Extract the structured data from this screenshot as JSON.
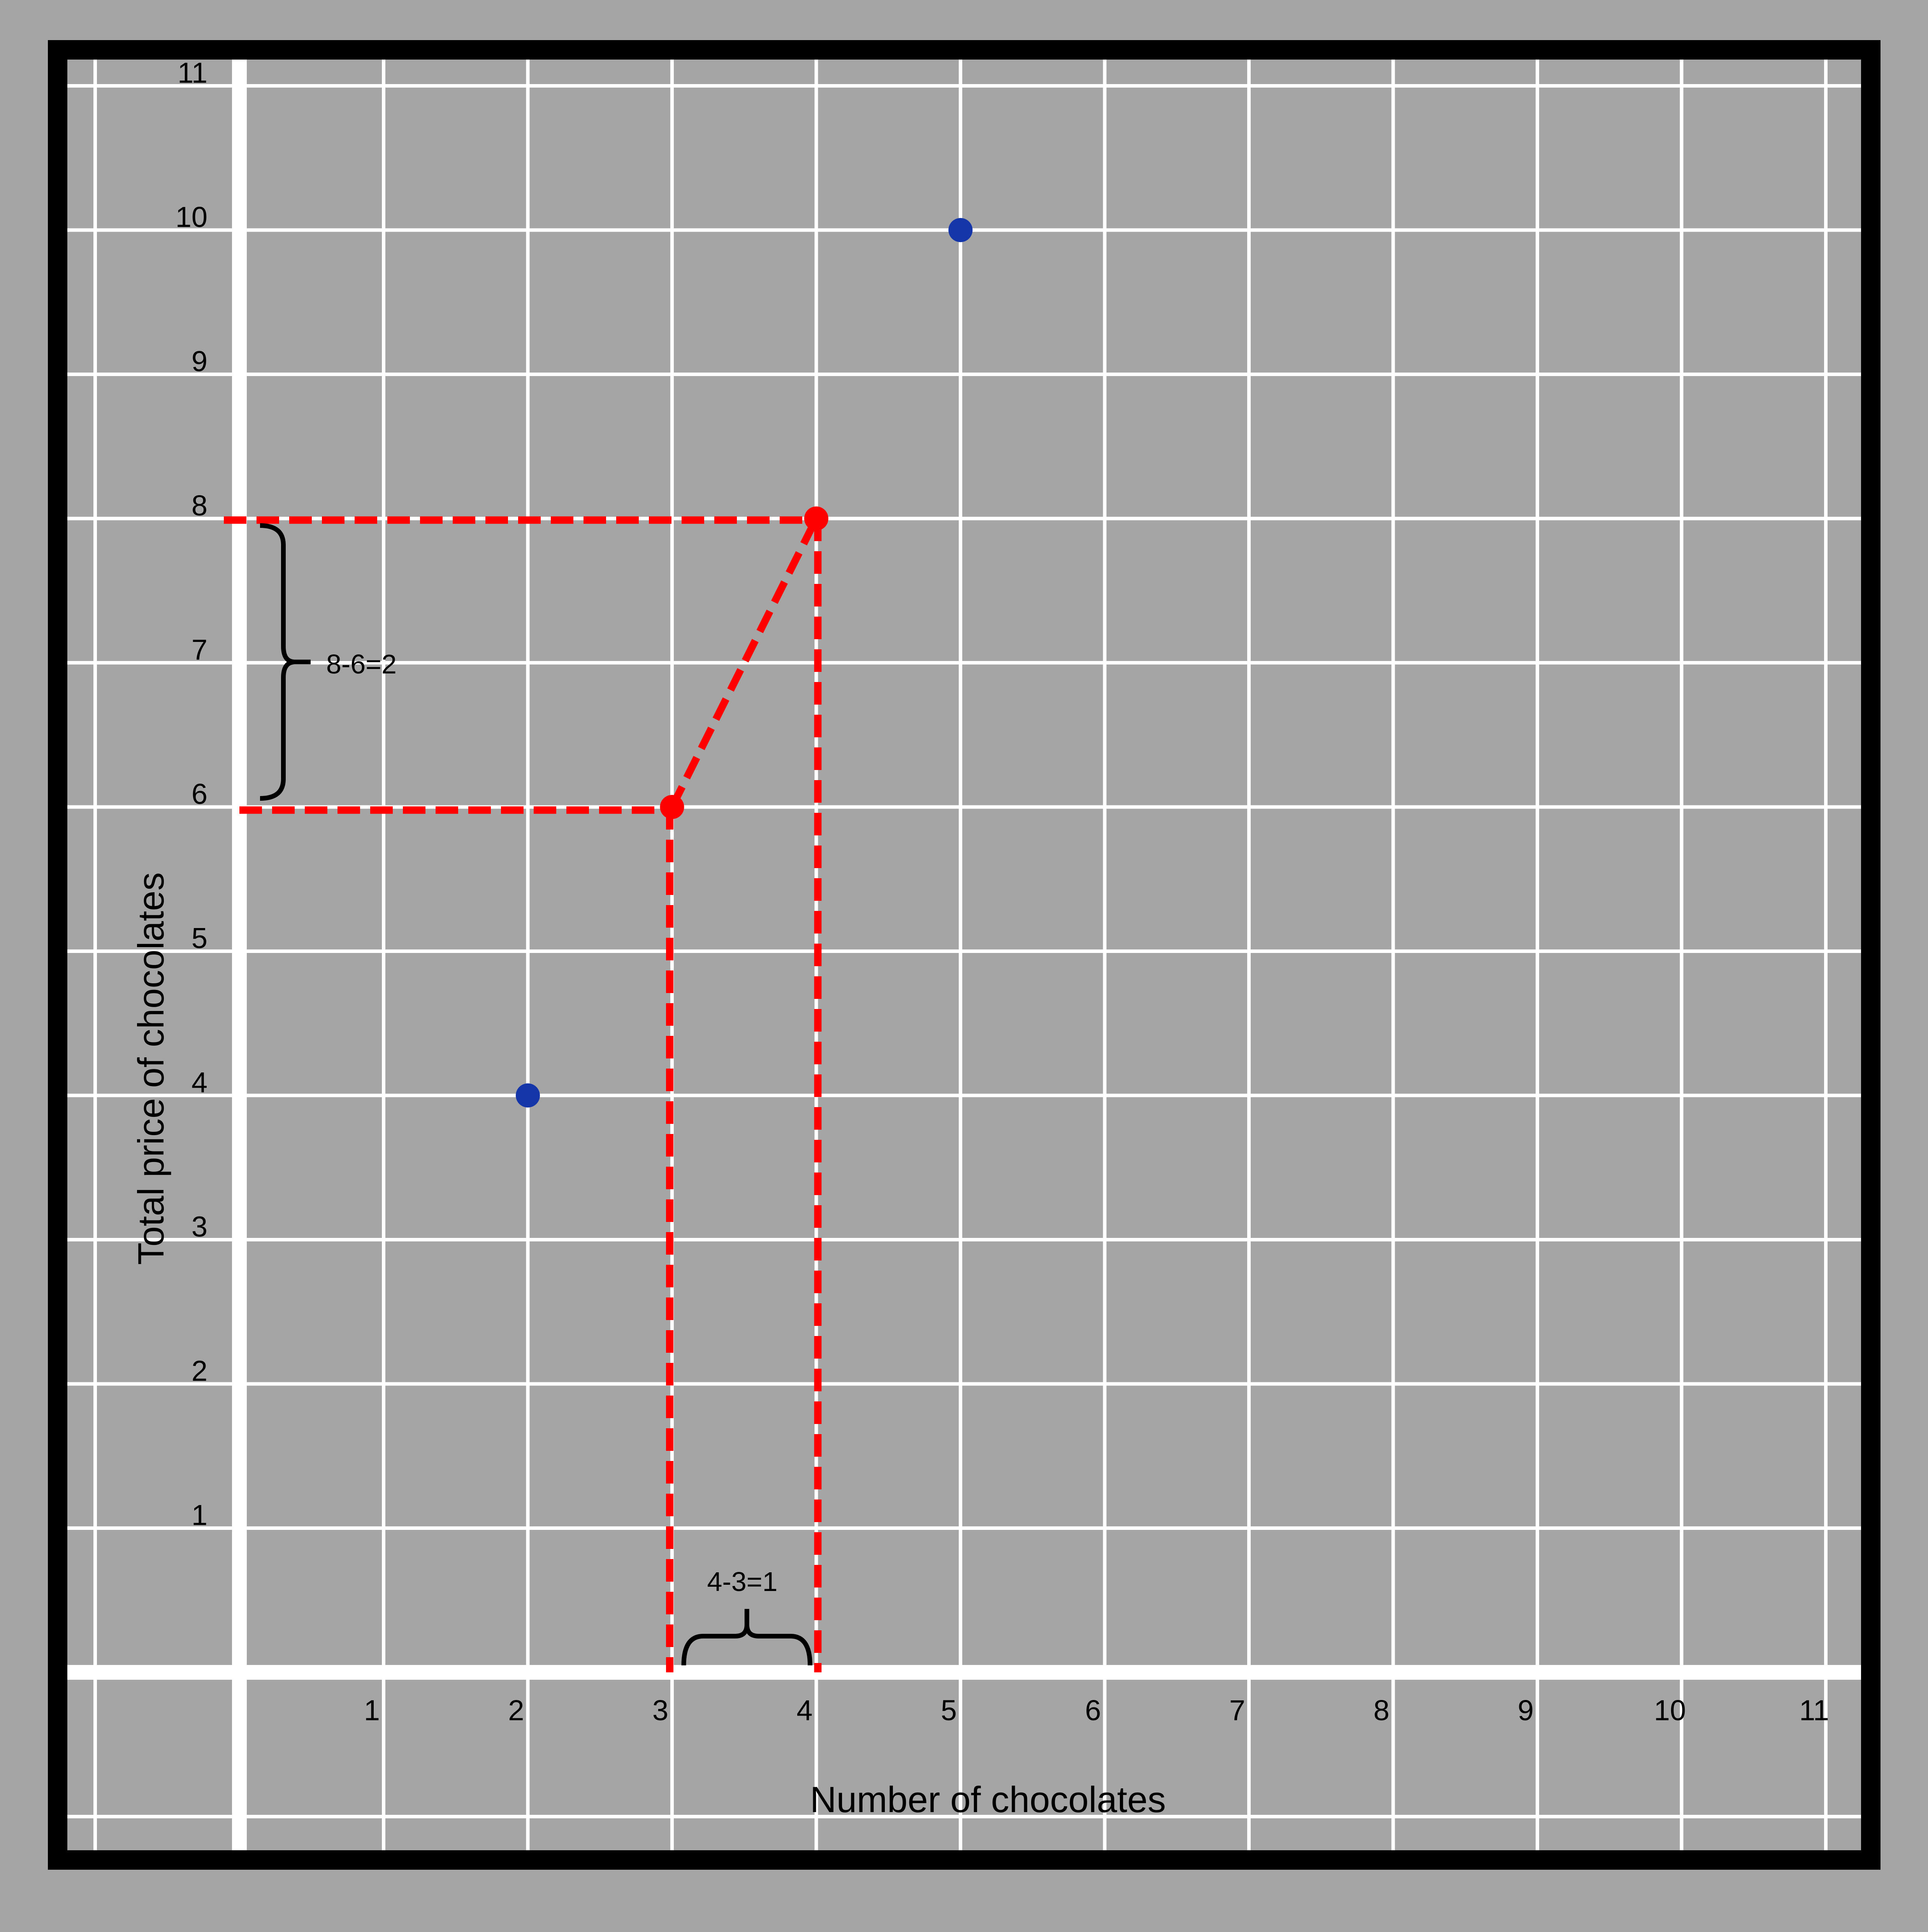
{
  "chart_data": {
    "type": "scatter",
    "xlabel": "Number of chocolates",
    "ylabel": "Total price of chocolates",
    "xlim": [
      0,
      11
    ],
    "ylim": [
      0,
      11
    ],
    "xticks": [
      "1",
      "2",
      "3",
      "4",
      "5",
      "6",
      "7",
      "8",
      "9",
      "10",
      "11"
    ],
    "yticks": [
      "1",
      "2",
      "3",
      "4",
      "5",
      "6",
      "7",
      "8",
      "9",
      "10",
      "11"
    ],
    "grid": true,
    "points": [
      {
        "x": 2,
        "y": 4,
        "color": "#1536a8"
      },
      {
        "x": 3,
        "y": 6,
        "color": "#ff0000"
      },
      {
        "x": 4,
        "y": 8,
        "color": "#ff0000"
      },
      {
        "x": 5,
        "y": 10,
        "color": "#1536a8"
      }
    ],
    "annotations": {
      "rise": "8-6=2",
      "run": "4-3=1"
    },
    "colors": {
      "background": "#a5a5a5",
      "grid": "#ffffff",
      "frame": "#000000",
      "highlight": "#ff0000",
      "point": "#1536a8"
    }
  }
}
